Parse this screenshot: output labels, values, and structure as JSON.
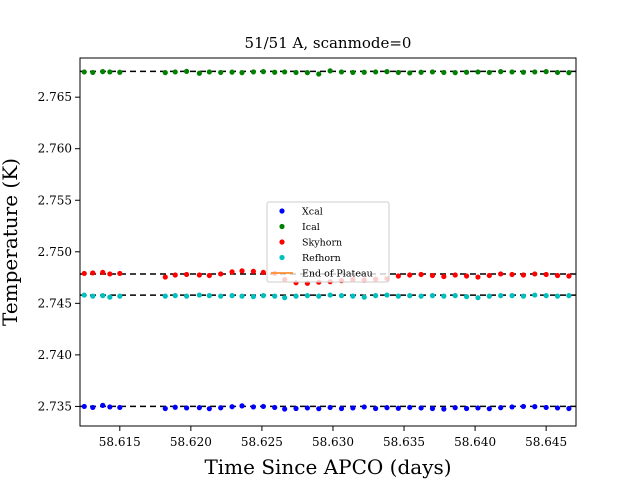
{
  "chart_data": {
    "type": "scatter",
    "title": "51/51 A, scanmode=0",
    "xlabel": "Time Since APCO (days)",
    "ylabel": "Temperature (K)",
    "xlim": [
      58.6122,
      58.6471
    ],
    "ylim": [
      2.7331,
      2.7688
    ],
    "xticks": [
      "58.615",
      "58.620",
      "58.625",
      "58.630",
      "58.635",
      "58.640",
      "58.645"
    ],
    "yticks": [
      "2.735",
      "2.740",
      "2.745",
      "2.750",
      "2.755",
      "2.760",
      "2.765"
    ],
    "legend_position": "center",
    "series": [
      {
        "name": "Xcal",
        "color": "#0000ff",
        "points": [
          [
            58.6125,
            2.735
          ],
          [
            58.6131,
            2.7349
          ],
          [
            58.6138,
            2.7351
          ],
          [
            58.6143,
            2.73495
          ],
          [
            58.615,
            2.7349
          ],
          [
            58.6182,
            2.7348
          ],
          [
            58.6189,
            2.73492
          ],
          [
            58.6197,
            2.73485
          ],
          [
            58.6206,
            2.73488
          ],
          [
            58.6213,
            2.73478
          ],
          [
            58.6221,
            2.73487
          ],
          [
            58.6229,
            2.73497
          ],
          [
            58.6236,
            2.73505
          ],
          [
            58.6244,
            2.73495
          ],
          [
            58.6251,
            2.735
          ],
          [
            58.6259,
            2.7349
          ],
          [
            58.6266,
            2.73475
          ],
          [
            58.6274,
            2.7348
          ],
          [
            58.6282,
            2.73485
          ],
          [
            58.629,
            2.73478
          ],
          [
            58.6298,
            2.7349
          ],
          [
            58.6306,
            2.7348
          ],
          [
            58.6314,
            2.73485
          ],
          [
            58.6322,
            2.73495
          ],
          [
            58.633,
            2.7348
          ],
          [
            58.6338,
            2.73488
          ],
          [
            58.6346,
            2.73482
          ],
          [
            58.6354,
            2.7349
          ],
          [
            58.6362,
            2.73485
          ],
          [
            58.637,
            2.7348
          ],
          [
            58.6378,
            2.73475
          ],
          [
            58.6386,
            2.73488
          ],
          [
            58.6394,
            2.7348
          ],
          [
            58.6402,
            2.73485
          ],
          [
            58.641,
            2.73478
          ],
          [
            58.6418,
            2.73488
          ],
          [
            58.6426,
            2.73495
          ],
          [
            58.6434,
            2.735
          ],
          [
            58.6442,
            2.73498
          ],
          [
            58.645,
            2.7349
          ],
          [
            58.6458,
            2.73485
          ],
          [
            58.6466,
            2.7348
          ]
        ]
      },
      {
        "name": "Ical",
        "color": "#008000",
        "points": [
          [
            58.6125,
            2.76745
          ],
          [
            58.6131,
            2.7674
          ],
          [
            58.6138,
            2.76748
          ],
          [
            58.6143,
            2.76745
          ],
          [
            58.615,
            2.76742
          ],
          [
            58.6182,
            2.76738
          ],
          [
            58.6189,
            2.76745
          ],
          [
            58.6197,
            2.7675
          ],
          [
            58.6206,
            2.76732
          ],
          [
            58.6213,
            2.76745
          ],
          [
            58.6221,
            2.7674
          ],
          [
            58.6229,
            2.76743
          ],
          [
            58.6236,
            2.76738
          ],
          [
            58.6244,
            2.76745
          ],
          [
            58.6251,
            2.76748
          ],
          [
            58.6259,
            2.76742
          ],
          [
            58.6266,
            2.76745
          ],
          [
            58.6274,
            2.7674
          ],
          [
            58.6282,
            2.76738
          ],
          [
            58.629,
            2.76725
          ],
          [
            58.6298,
            2.76755
          ],
          [
            58.6306,
            2.76745
          ],
          [
            58.6314,
            2.7674
          ],
          [
            58.6322,
            2.76742
          ],
          [
            58.633,
            2.76745
          ],
          [
            58.6338,
            2.76748
          ],
          [
            58.6346,
            2.7674
          ],
          [
            58.6354,
            2.76735
          ],
          [
            58.6362,
            2.76742
          ],
          [
            58.637,
            2.76745
          ],
          [
            58.6378,
            2.7674
          ],
          [
            58.6386,
            2.76738
          ],
          [
            58.6394,
            2.76742
          ],
          [
            58.6402,
            2.76745
          ],
          [
            58.641,
            2.7674
          ],
          [
            58.6418,
            2.76748
          ],
          [
            58.6426,
            2.76745
          ],
          [
            58.6434,
            2.76742
          ],
          [
            58.6442,
            2.76745
          ],
          [
            58.645,
            2.76748
          ],
          [
            58.6458,
            2.7674
          ],
          [
            58.6466,
            2.76738
          ]
        ]
      },
      {
        "name": "Skyhorn",
        "color": "#ff0000",
        "points": [
          [
            58.6125,
            2.7479
          ],
          [
            58.6131,
            2.74795
          ],
          [
            58.6138,
            2.748
          ],
          [
            58.6143,
            2.74785
          ],
          [
            58.615,
            2.7479
          ],
          [
            58.6182,
            2.74755
          ],
          [
            58.6189,
            2.74775
          ],
          [
            58.6197,
            2.7478
          ],
          [
            58.6206,
            2.74775
          ],
          [
            58.6213,
            2.7477
          ],
          [
            58.6221,
            2.74785
          ],
          [
            58.6229,
            2.74805
          ],
          [
            58.6236,
            2.74815
          ],
          [
            58.6244,
            2.7481
          ],
          [
            58.6251,
            2.748
          ],
          [
            58.6259,
            2.7479
          ],
          [
            58.6266,
            2.7473
          ],
          [
            58.6274,
            2.747
          ],
          [
            58.6282,
            2.74695
          ],
          [
            58.629,
            2.74705
          ],
          [
            58.6298,
            2.7471
          ],
          [
            58.6306,
            2.7472
          ],
          [
            58.6314,
            2.7473
          ],
          [
            58.6322,
            2.74725
          ],
          [
            58.633,
            2.74735
          ],
          [
            58.6338,
            2.7474
          ],
          [
            58.6346,
            2.74765
          ],
          [
            58.6354,
            2.74775
          ],
          [
            58.6362,
            2.7478
          ],
          [
            58.637,
            2.7477
          ],
          [
            58.6378,
            2.7476
          ],
          [
            58.6386,
            2.74775
          ],
          [
            58.6394,
            2.74765
          ],
          [
            58.6402,
            2.74755
          ],
          [
            58.641,
            2.7477
          ],
          [
            58.6418,
            2.74785
          ],
          [
            58.6426,
            2.7478
          ],
          [
            58.6434,
            2.74775
          ],
          [
            58.6442,
            2.74785
          ],
          [
            58.645,
            2.7478
          ],
          [
            58.6458,
            2.7477
          ],
          [
            58.6466,
            2.74765
          ]
        ]
      },
      {
        "name": "Refhorn",
        "color": "#00bfbf",
        "points": [
          [
            58.6125,
            2.7458
          ],
          [
            58.6131,
            2.7457
          ],
          [
            58.6138,
            2.74575
          ],
          [
            58.6143,
            2.7456
          ],
          [
            58.615,
            2.7457
          ],
          [
            58.6182,
            2.7457
          ],
          [
            58.6189,
            2.74575
          ],
          [
            58.6197,
            2.7457
          ],
          [
            58.6206,
            2.7458
          ],
          [
            58.6213,
            2.74575
          ],
          [
            58.6221,
            2.7457
          ],
          [
            58.6229,
            2.74575
          ],
          [
            58.6236,
            2.7457
          ],
          [
            58.6244,
            2.74565
          ],
          [
            58.6251,
            2.74575
          ],
          [
            58.6259,
            2.7457
          ],
          [
            58.6266,
            2.74555
          ],
          [
            58.6274,
            2.7457
          ],
          [
            58.6282,
            2.74575
          ],
          [
            58.629,
            2.7457
          ],
          [
            58.6298,
            2.7458
          ],
          [
            58.6306,
            2.74575
          ],
          [
            58.6314,
            2.7457
          ],
          [
            58.6322,
            2.7456
          ],
          [
            58.633,
            2.74575
          ],
          [
            58.6338,
            2.7458
          ],
          [
            58.6346,
            2.7457
          ],
          [
            58.6354,
            2.74575
          ],
          [
            58.6362,
            2.7457
          ],
          [
            58.637,
            2.74575
          ],
          [
            58.6378,
            2.7457
          ],
          [
            58.6386,
            2.74575
          ],
          [
            58.6394,
            2.74565
          ],
          [
            58.6402,
            2.74555
          ],
          [
            58.641,
            2.7457
          ],
          [
            58.6418,
            2.74575
          ],
          [
            58.6426,
            2.74575
          ],
          [
            58.6434,
            2.7457
          ],
          [
            58.6442,
            2.7458
          ],
          [
            58.645,
            2.74575
          ],
          [
            58.6458,
            2.7457
          ],
          [
            58.6466,
            2.74575
          ]
        ]
      }
    ],
    "reference_lines": [
      {
        "y": 2.7675,
        "style": "dashed",
        "color": "#000000"
      },
      {
        "y": 2.74785,
        "style": "dashed",
        "color": "#000000"
      },
      {
        "y": 2.7458,
        "style": "dashed",
        "color": "#000000"
      },
      {
        "y": 2.735,
        "style": "dashed",
        "color": "#000000"
      }
    ],
    "legend_extra": {
      "name": "End of Plateau",
      "color": "#ff7f0e",
      "marker": "line"
    }
  }
}
